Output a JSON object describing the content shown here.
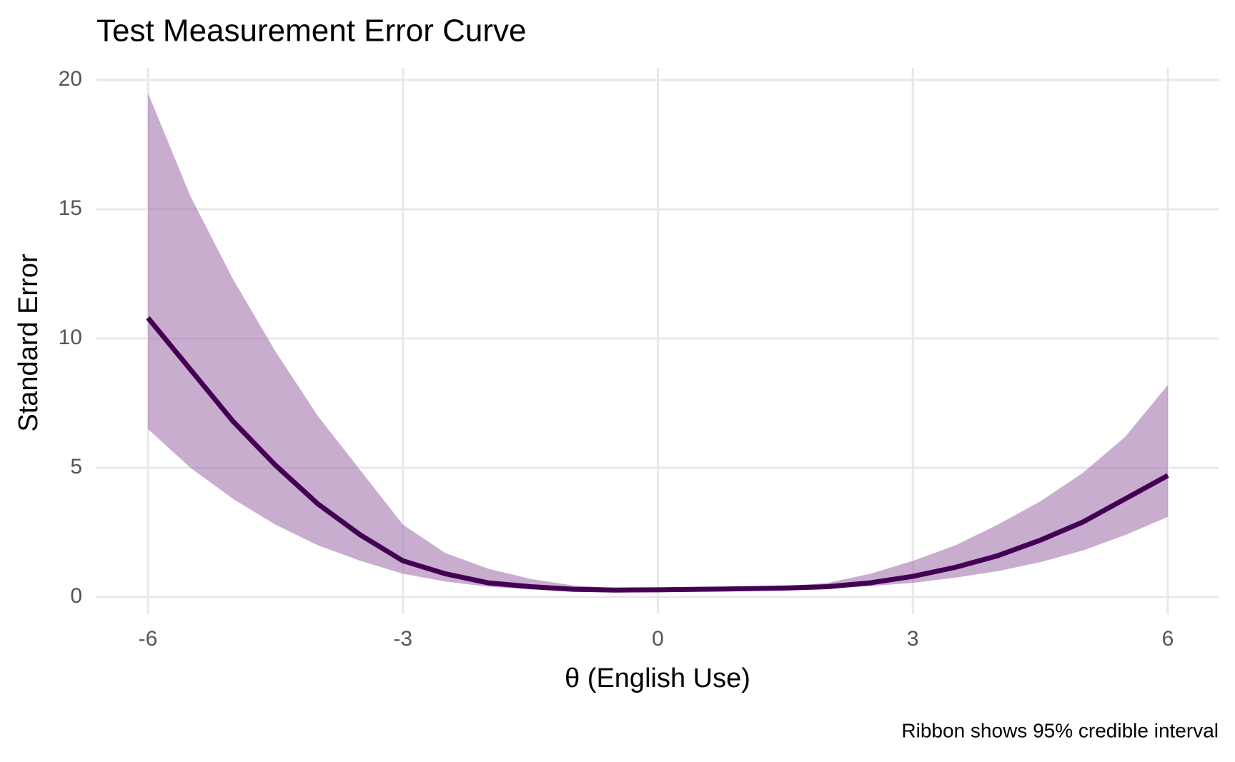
{
  "chart_data": {
    "type": "line",
    "title": "Test Measurement Error Curve",
    "x_label": "θ (English Use)",
    "y_label": "Standard Error",
    "caption": "Ribbon shows 95% credible interval",
    "x": [
      -6,
      -5.5,
      -5,
      -4.5,
      -4,
      -3.5,
      -3,
      -2.5,
      -2,
      -1.5,
      -1,
      -0.5,
      0,
      0.5,
      1,
      1.5,
      2,
      2.5,
      3,
      3.5,
      4,
      4.5,
      5,
      5.5,
      6
    ],
    "values": [
      10.8,
      8.8,
      6.8,
      5.1,
      3.6,
      2.4,
      1.4,
      0.9,
      0.55,
      0.4,
      0.3,
      0.27,
      0.28,
      0.3,
      0.32,
      0.35,
      0.4,
      0.55,
      0.8,
      1.15,
      1.6,
      2.2,
      2.9,
      3.8,
      4.7
    ],
    "upper": [
      19.5,
      15.5,
      12.3,
      9.5,
      7.0,
      4.9,
      2.8,
      1.7,
      1.1,
      0.7,
      0.45,
      0.35,
      0.32,
      0.33,
      0.36,
      0.42,
      0.55,
      0.9,
      1.4,
      2.0,
      2.8,
      3.7,
      4.8,
      6.2,
      8.2
    ],
    "lower": [
      6.5,
      5.0,
      3.8,
      2.8,
      2.0,
      1.4,
      0.9,
      0.6,
      0.4,
      0.3,
      0.25,
      0.22,
      0.24,
      0.26,
      0.28,
      0.3,
      0.33,
      0.42,
      0.55,
      0.75,
      1.0,
      1.35,
      1.8,
      2.4,
      3.1
    ],
    "color": "#440154",
    "ribbon_color": "#9b6aa8",
    "xlim": [
      -6,
      6
    ],
    "ylim": [
      0,
      20
    ],
    "xticks": [
      -6,
      -3,
      0,
      3,
      6
    ],
    "yticks": [
      0,
      5,
      10,
      15,
      20
    ],
    "grid": true
  }
}
